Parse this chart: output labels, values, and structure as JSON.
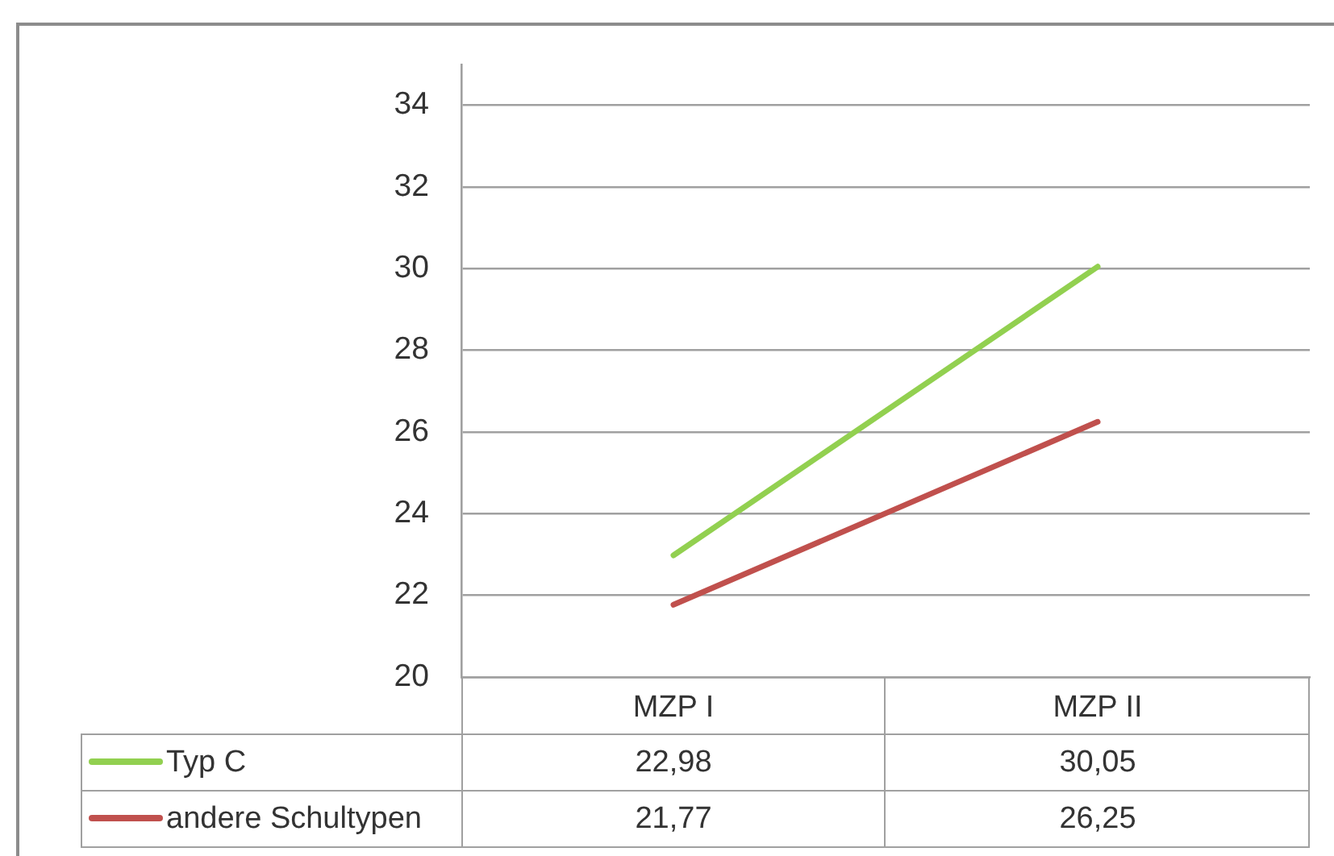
{
  "chart_data": {
    "type": "line",
    "categories": [
      "MZP I",
      "MZP II"
    ],
    "series": [
      {
        "name": "Typ C",
        "color": "#92d050",
        "values": [
          22.98,
          30.05
        ],
        "value_labels": [
          "22,98",
          "30,05"
        ]
      },
      {
        "name": "andere Schultypen",
        "color": "#c0504d",
        "values": [
          21.77,
          26.25
        ],
        "value_labels": [
          "21,77",
          "26,25"
        ]
      }
    ],
    "ylim": [
      20,
      35
    ],
    "yticks": [
      20,
      22,
      24,
      26,
      28,
      30,
      32,
      34
    ],
    "grid": "y",
    "legend": "bottom",
    "marker": "none",
    "line_style": "solid"
  }
}
